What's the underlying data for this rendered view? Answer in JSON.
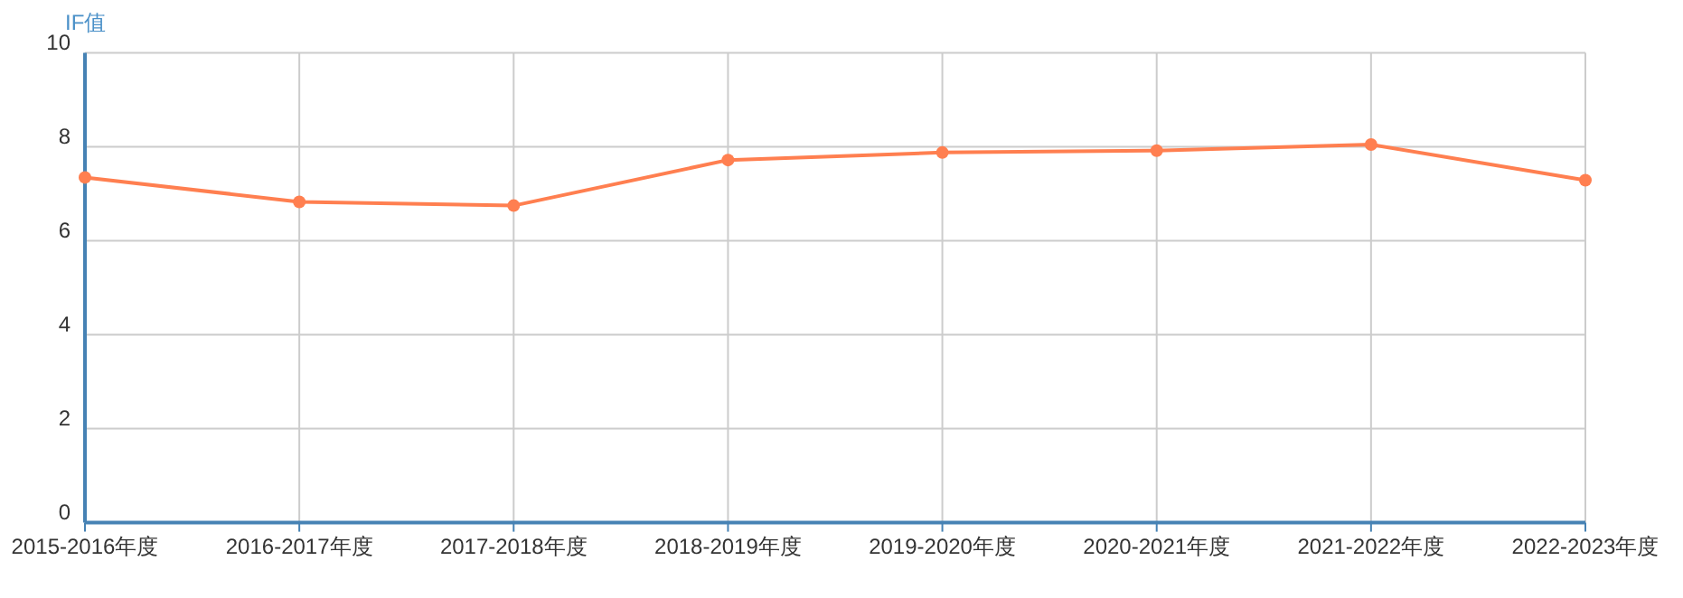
{
  "chart_data": {
    "type": "line",
    "ylabel": "IF值",
    "categories": [
      "2015-2016年度",
      "2016-2017年度",
      "2017-2018年度",
      "2018-2019年度",
      "2019-2020年度",
      "2020-2021年度",
      "2021-2022年度",
      "2022-2023年度"
    ],
    "series": [
      {
        "color": "#ff7f50",
        "values": [
          7.35,
          6.83,
          6.75,
          7.72,
          7.88,
          7.92,
          8.05,
          7.29
        ]
      }
    ],
    "ylim": [
      0,
      10
    ],
    "yticks": [
      0,
      2,
      4,
      6,
      8,
      10
    ],
    "grid": true,
    "marker": "circle",
    "line_style": "solid"
  }
}
